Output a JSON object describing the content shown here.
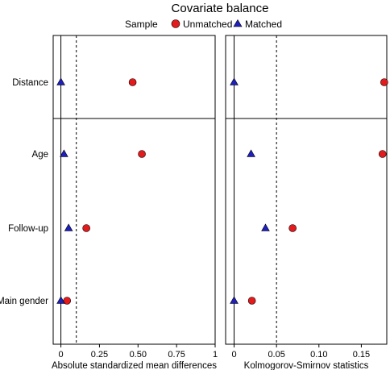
{
  "chart_data": {
    "type": "scatter",
    "title": "Covariate balance",
    "legend": {
      "title": "Sample",
      "placement": "top",
      "entries": [
        {
          "label": "Unmatched",
          "shape": "circle",
          "color": "#e41a1c"
        },
        {
          "label": "Matched",
          "shape": "triangle",
          "color": "#1f1fbf"
        }
      ]
    },
    "categories": [
      "Distance",
      "Age",
      "Follow-up",
      "Main gender"
    ],
    "panels": [
      {
        "xlabel": "Absolute standardized mean differences",
        "xlim": [
          -0.05,
          1.0
        ],
        "ticks": [
          0,
          0.25,
          0.5,
          0.75,
          1
        ],
        "tick_labels": [
          "0",
          "0.25",
          "0.50",
          "0.75",
          "1"
        ],
        "threshold": 0.1,
        "series": [
          {
            "name": "Unmatched",
            "values": [
              0.465,
              0.525,
              0.165,
              0.04
            ]
          },
          {
            "name": "Matched",
            "values": [
              0.0,
              0.02,
              0.05,
              0.0
            ]
          }
        ]
      },
      {
        "xlabel": "Kolmogorov-Smirnov statistics",
        "xlim": [
          -0.01,
          0.18
        ],
        "ticks": [
          0,
          0.05,
          0.1,
          0.15
        ],
        "tick_labels": [
          "0",
          "0.05",
          "0.10",
          "0.15"
        ],
        "threshold": 0.05,
        "series": [
          {
            "name": "Unmatched",
            "values": [
              0.177,
              0.175,
              0.069,
              0.021
            ]
          },
          {
            "name": "Matched",
            "values": [
              0.0,
              0.02,
              0.037,
              0.0
            ]
          }
        ]
      }
    ],
    "grid": false
  }
}
